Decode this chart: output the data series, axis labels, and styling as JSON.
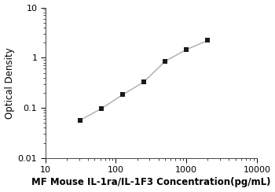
{
  "x_data": [
    31.25,
    62.5,
    125,
    250,
    500,
    1000,
    2000
  ],
  "y_data": [
    0.057,
    0.097,
    0.183,
    0.33,
    0.85,
    1.45,
    2.2
  ],
  "xlim": [
    10,
    10000
  ],
  "ylim": [
    0.01,
    10
  ],
  "xlabel": "MF Mouse IL-1ra/IL-1F3 Concentration(pg/mL)",
  "ylabel": "Optical Density",
  "marker": "s",
  "marker_color": "#1a1a1a",
  "line_color": "#aaaaaa",
  "marker_size": 4.5,
  "line_width": 1.0,
  "xlabel_fontsize": 8.5,
  "ylabel_fontsize": 8.5,
  "tick_fontsize": 8,
  "background_color": "#ffffff",
  "x_ticks": [
    10,
    100,
    1000,
    10000
  ],
  "x_tick_labels": [
    "10",
    "100",
    "1000",
    "10000"
  ],
  "y_ticks": [
    0.01,
    0.1,
    1,
    10
  ],
  "y_tick_labels": [
    "0.01",
    "0.1",
    "1",
    "10"
  ]
}
